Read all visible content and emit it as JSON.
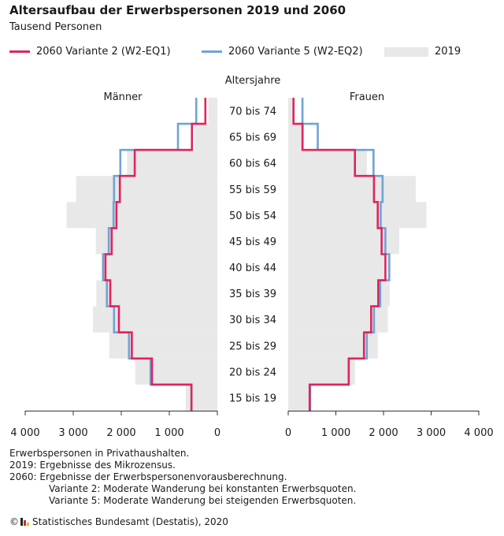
{
  "header": {
    "title": "Altersaufbau der Erwerbspersonen 2019 und 2060",
    "subtitle": "Tausend Personen"
  },
  "legend": {
    "v2_label": "2060 Variante 2 (W2-EQ1)",
    "v5_label": "2060 Variante 5 (W2-EQ2)",
    "base_label": "2019"
  },
  "colors": {
    "v2": "#e0245e",
    "v5": "#6fa3d6",
    "base": "#e8e8e8"
  },
  "chart_data": {
    "type": "bar",
    "title": "Altersaufbau der Erwerbspersonen 2019 und 2060",
    "subtitle": "Tausend Personen",
    "age_axis_title": "Altersjahre",
    "panel_labels": {
      "left": "Männer",
      "right": "Frauen"
    },
    "age_groups": [
      "15 bis 19",
      "20 bis 24",
      "25 bis 29",
      "30 bis 34",
      "35 bis 39",
      "40 bis 44",
      "45 bis 49",
      "50 bis 54",
      "55 bis 59",
      "60 bis 64",
      "65 bis 69",
      "70 bis 74"
    ],
    "xlim": [
      0,
      4000
    ],
    "x_ticks": [
      0,
      1000,
      2000,
      3000,
      4000
    ],
    "x_tick_labels_left": [
      "0",
      "1 000",
      "2 000",
      "3 000",
      "4 000"
    ],
    "x_tick_labels_right": [
      "0",
      "1 000",
      "2 000",
      "3 000",
      "4 000"
    ],
    "maenner": {
      "2019": [
        660,
        1710,
        2250,
        2590,
        2520,
        2380,
        2530,
        3140,
        2940,
        1880,
        470,
        190
      ],
      "2060 Variante 2 (W2-EQ1)": [
        540,
        1360,
        1780,
        2050,
        2230,
        2330,
        2200,
        2100,
        2030,
        1720,
        530,
        250
      ],
      "2060 Variante 5 (W2-EQ2)": [
        540,
        1390,
        1840,
        2150,
        2300,
        2380,
        2260,
        2160,
        2150,
        2020,
        820,
        440
      ]
    },
    "frauen": {
      "2019": [
        460,
        1400,
        1880,
        2090,
        2130,
        2050,
        2330,
        2900,
        2680,
        1650,
        330,
        120
      ],
      "2060 Variante 2 (W2-EQ1)": [
        450,
        1270,
        1590,
        1740,
        1890,
        2040,
        1960,
        1880,
        1800,
        1400,
        300,
        110
      ],
      "2060 Variante 5 (W2-EQ2)": [
        460,
        1270,
        1650,
        1800,
        1930,
        2120,
        2040,
        1940,
        1980,
        1790,
        620,
        300
      ]
    }
  },
  "notes": {
    "line1": "Erwerbspersonen in Privathaushalten.",
    "line2": "2019: Ergebnisse des Mikrozensus.",
    "line3": "2060: Ergebnisse der Erwerbspersonenvorausberechnung.",
    "line4": "Variante 2: Moderate Wanderung bei konstanten Erwerbsquoten.",
    "line5": "Variante 5: Moderate Wanderung bei steigenden Erwerbsquoten."
  },
  "source": {
    "copyright": "©",
    "text": "Statistisches Bundesamt (Destatis), 2020"
  }
}
